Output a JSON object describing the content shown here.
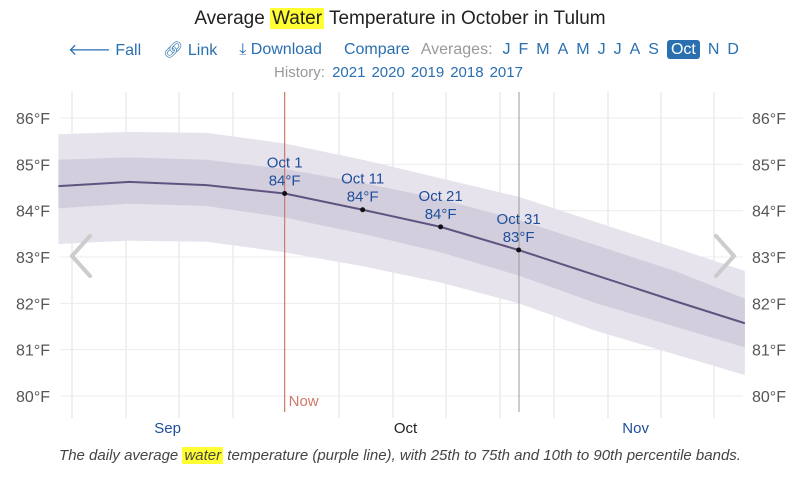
{
  "header": {
    "title_pre": "Average ",
    "title_hl": "Water",
    "title_post": " Temperature in October in Tulum"
  },
  "nav": {
    "back": "Fall",
    "link": "Link",
    "download": "Download",
    "compare": "Compare",
    "averages_label": "Averages:",
    "months": [
      "J",
      "F",
      "M",
      "A",
      "M",
      "J",
      "J",
      "A",
      "S",
      "Oct",
      "N",
      "D"
    ],
    "selected_month": "Oct"
  },
  "history": {
    "label": "History:",
    "years": [
      "2021",
      "2020",
      "2019",
      "2018",
      "2017"
    ]
  },
  "chart_data": {
    "type": "area",
    "title": "Average Water Temperature in October in Tulum",
    "x_unit": "day since Aug 31 (Oct 1 = 30)",
    "xlim": [
      1,
      89
    ],
    "ylim": [
      79.6,
      86.4
    ],
    "y_ticks": [
      "80°F",
      "81°F",
      "82°F",
      "83°F",
      "84°F",
      "85°F",
      "86°F"
    ],
    "y_tick_values": [
      80,
      81,
      82,
      83,
      84,
      85,
      86
    ],
    "month_labels": [
      {
        "label": "Sep",
        "day": 15
      },
      {
        "label": "Oct",
        "day": 45.5
      },
      {
        "label": "Nov",
        "day": 75
      }
    ],
    "x": [
      1,
      10,
      20,
      30,
      40,
      50,
      60,
      70,
      80,
      89
    ],
    "series": [
      {
        "name": "10th-90th percentile",
        "lower": [
          83.28,
          83.35,
          83.33,
          83.1,
          82.8,
          82.45,
          82.0,
          81.4,
          80.9,
          80.45
        ],
        "upper": [
          85.65,
          85.7,
          85.68,
          85.45,
          85.1,
          84.7,
          84.3,
          83.75,
          83.2,
          82.7
        ],
        "color": "#e6e3ec"
      },
      {
        "name": "25th-75th percentile",
        "lower": [
          84.05,
          84.15,
          84.1,
          83.85,
          83.5,
          83.1,
          82.6,
          82.0,
          81.5,
          81.05
        ],
        "upper": [
          85.1,
          85.15,
          85.1,
          84.9,
          84.6,
          84.25,
          83.8,
          83.25,
          82.7,
          82.1
        ],
        "color": "#d3cedd"
      },
      {
        "name": "daily average",
        "values": [
          84.53,
          84.62,
          84.55,
          84.37,
          84.02,
          83.65,
          83.15,
          82.6,
          82.05,
          81.57
        ],
        "color": "#5f5480"
      }
    ],
    "annotations": [
      {
        "label": "Oct 1",
        "value_label": "84°F",
        "day": 30,
        "value": 84.37
      },
      {
        "label": "Oct 11",
        "value_label": "84°F",
        "day": 40,
        "value": 84.02
      },
      {
        "label": "Oct 21",
        "value_label": "84°F",
        "day": 50,
        "value": 83.65
      },
      {
        "label": "Oct 31",
        "value_label": "83°F",
        "day": 60,
        "value": 83.15
      }
    ],
    "now": {
      "label": "Now",
      "day": 30,
      "color": "#d0786c"
    },
    "grid": true
  },
  "caption": {
    "pre": "The daily average ",
    "hl": "water",
    "post": " temperature (purple line), with 25th to 75th and 10th to 90th percentile bands."
  }
}
